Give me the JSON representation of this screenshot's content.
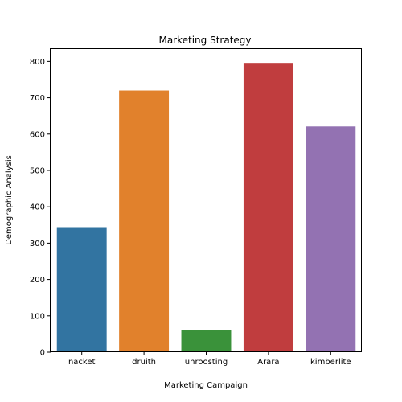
{
  "chart_data": {
    "type": "bar",
    "title": "Marketing Strategy",
    "xlabel": "Marketing Campaign",
    "ylabel": "Demographic Analysis",
    "categories": [
      "nacket",
      "druith",
      "unroosting",
      "Arara",
      "kimberlite"
    ],
    "values": [
      344,
      720,
      60,
      796,
      621
    ],
    "colors": [
      "#3274a1",
      "#e1812c",
      "#3a923a",
      "#c03d3e",
      "#9372b2"
    ],
    "ylim": [
      0,
      834
    ],
    "yticks": [
      0,
      100,
      200,
      300,
      400,
      500,
      600,
      700,
      800
    ],
    "grid": false,
    "legend": "none"
  }
}
